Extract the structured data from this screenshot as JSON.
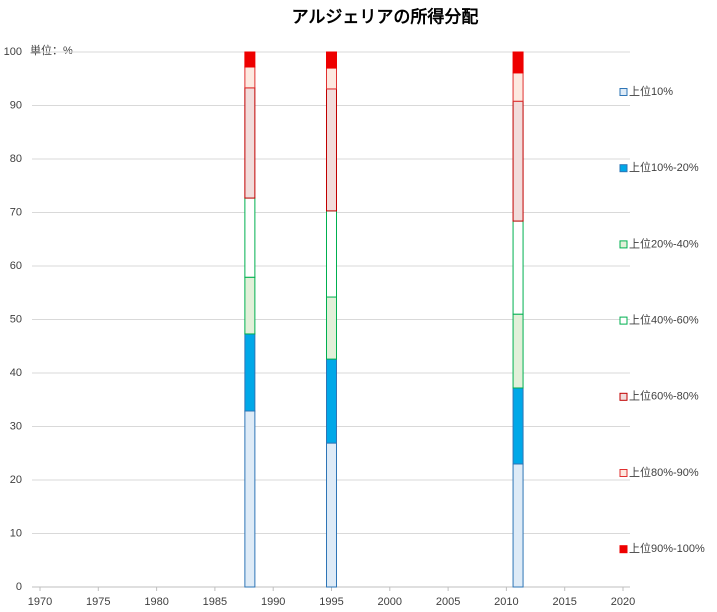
{
  "chart_data": {
    "type": "stacked_bar",
    "title": "アルジェリアの所得分配",
    "annotation": "単位：%",
    "x": [
      1988,
      1995,
      2011
    ],
    "series": [
      {
        "name": "上位10%",
        "color": "#deebf7",
        "edgecolor": "#2e75b6",
        "values": [
          32.9,
          26.9,
          23.0
        ]
      },
      {
        "name": "上位10%-20%",
        "color": "#00a8e8",
        "edgecolor": "#2e75b6",
        "values": [
          14.4,
          15.7,
          14.2
        ]
      },
      {
        "name": "上位20%-40%",
        "color": "#e2f0d9",
        "edgecolor": "#00b050",
        "values": [
          10.6,
          11.6,
          13.8
        ]
      },
      {
        "name": "上位40%-60%",
        "color": "#ffffff",
        "edgecolor": "#00b050",
        "values": [
          14.8,
          16.1,
          17.4
        ]
      },
      {
        "name": "上位60%-80%",
        "color": "#f2dcdb",
        "edgecolor": "#c00000",
        "values": [
          20.6,
          22.8,
          22.4
        ]
      },
      {
        "name": "上位80%-90%",
        "color": "#fde9e0",
        "edgecolor": "#e03030",
        "values": [
          3.9,
          3.9,
          5.3
        ]
      },
      {
        "name": "上位90%-100%",
        "color": "#ee0000",
        "edgecolor": "#ee0000",
        "values": [
          2.8,
          3.0,
          3.9
        ]
      }
    ],
    "xlim": [
      1970,
      2020
    ],
    "xticks": [
      1970,
      1975,
      1980,
      1985,
      1990,
      1995,
      2000,
      2005,
      2010,
      2015,
      2020
    ],
    "ylim": [
      0,
      100
    ],
    "yticks": [
      0,
      10,
      20,
      30,
      40,
      50,
      60,
      70,
      80,
      90,
      100
    ],
    "grid": true,
    "legend": "right"
  }
}
